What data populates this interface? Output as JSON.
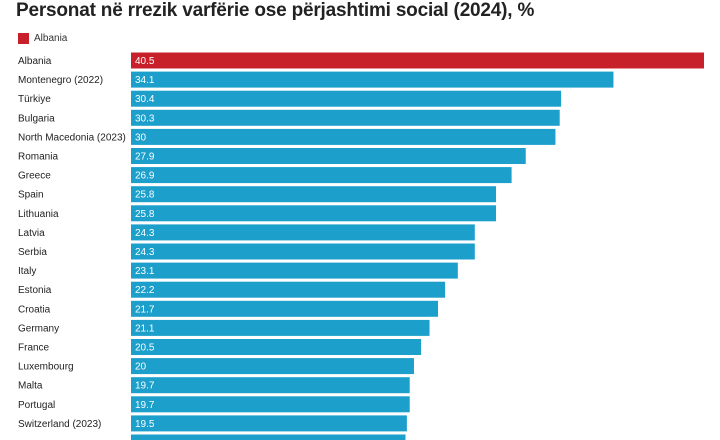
{
  "chart_data": {
    "type": "bar",
    "orientation": "horizontal",
    "title": "Personat në rrezik varfërie ose përjashtimi social (2024), %",
    "legend": [
      {
        "label": "Albania",
        "color": "#c8202a"
      }
    ],
    "categories": [
      "Albania",
      "Montenegro (2022)",
      "Türkiye",
      "Bulgaria",
      "North Macedonia (2023)",
      "Romania",
      "Greece",
      "Spain",
      "Lithuania",
      "Latvia",
      "Serbia",
      "Italy",
      "Estonia",
      "Croatia",
      "Germany",
      "France",
      "Luxembourg",
      "Malta",
      "Portugal",
      "Switzerland (2023)",
      ""
    ],
    "values": [
      40.5,
      34.1,
      30.4,
      30.3,
      30,
      27.9,
      26.9,
      25.8,
      25.8,
      24.3,
      24.3,
      23.1,
      22.2,
      21.7,
      21.1,
      20.5,
      20,
      19.7,
      19.7,
      19.5,
      19.4
    ],
    "value_labels": [
      "40.5",
      "34.1",
      "30.4",
      "30.3",
      "30",
      "27.9",
      "26.9",
      "25.8",
      "25.8",
      "24.3",
      "24.3",
      "23.1",
      "22.2",
      "21.7",
      "21.1",
      "20.5",
      "20",
      "19.7",
      "19.7",
      "19.5",
      ""
    ],
    "highlight_category": "Albania",
    "colors": {
      "highlight": "#c8202a",
      "default": "#1d9fcb"
    },
    "xlim": [
      0,
      40.5
    ],
    "grid": false
  }
}
